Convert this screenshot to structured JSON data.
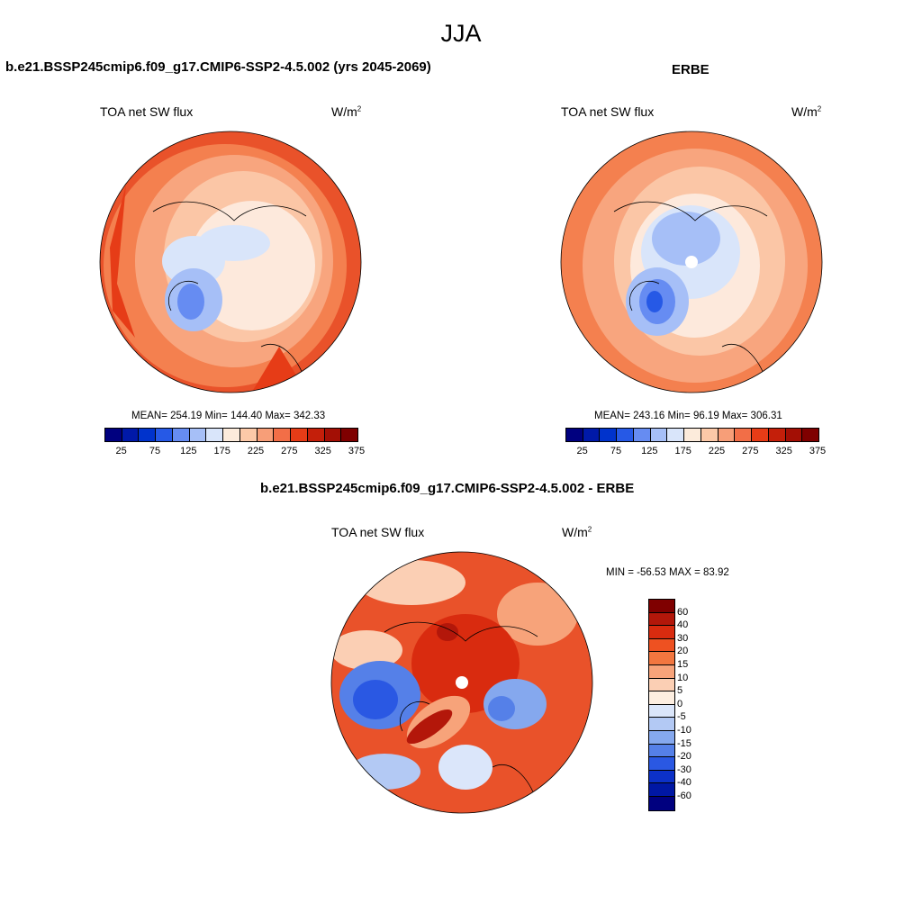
{
  "season": "JJA",
  "colors": {
    "abs_scale": [
      "#00007f",
      "#0019a8",
      "#0033cc",
      "#2659e6",
      "#668cf2",
      "#a6bff7",
      "#d9e5fa",
      "#fcebdb",
      "#fcc9a8",
      "#f79e78",
      "#f26e47",
      "#e63c17",
      "#c41f0a",
      "#a30f05",
      "#7f0000"
    ],
    "diff_scale": [
      "#7f0000",
      "#b3170a",
      "#d92b0f",
      "#ee5121",
      "#f2763f",
      "#f7a37a",
      "#fbcfb4",
      "#fdeee0",
      "#dbe6fa",
      "#b3c9f4",
      "#85a8ee",
      "#5580e8",
      "#2a58e3",
      "#0c31c8",
      "#0017a4",
      "#00007f"
    ]
  },
  "panels": [
    {
      "id": "model",
      "title": "b.e21.BSSP245cmip6.f09_g17.CMIP6-SSP2-4.5.002 (yrs 2045-2069)",
      "variable": "TOA net SW flux",
      "units": "W/m",
      "units_sup": "2",
      "stats": "MEAN= 254.19  Min= 144.40  Max= 342.33",
      "ticks": [
        "25",
        "75",
        "125",
        "175",
        "225",
        "275",
        "325",
        "375"
      ]
    },
    {
      "id": "obs",
      "title": "ERBE",
      "variable": "TOA net SW flux",
      "units": "W/m",
      "units_sup": "2",
      "stats": "MEAN= 243.16  Min=  96.19  Max= 306.31",
      "ticks": [
        "25",
        "75",
        "125",
        "175",
        "225",
        "275",
        "325",
        "375"
      ]
    }
  ],
  "difference": {
    "title": "b.e21.BSSP245cmip6.f09_g17.CMIP6-SSP2-4.5.002 - ERBE",
    "variable": "TOA net SW flux",
    "units": "W/m",
    "units_sup": "2",
    "stats": "MIN = -56.53 MAX =  83.92",
    "ticks": [
      "60",
      "40",
      "30",
      "20",
      "15",
      "10",
      "5",
      "0",
      "-5",
      "-10",
      "-15",
      "-20",
      "-30",
      "-40",
      "-60"
    ]
  }
}
